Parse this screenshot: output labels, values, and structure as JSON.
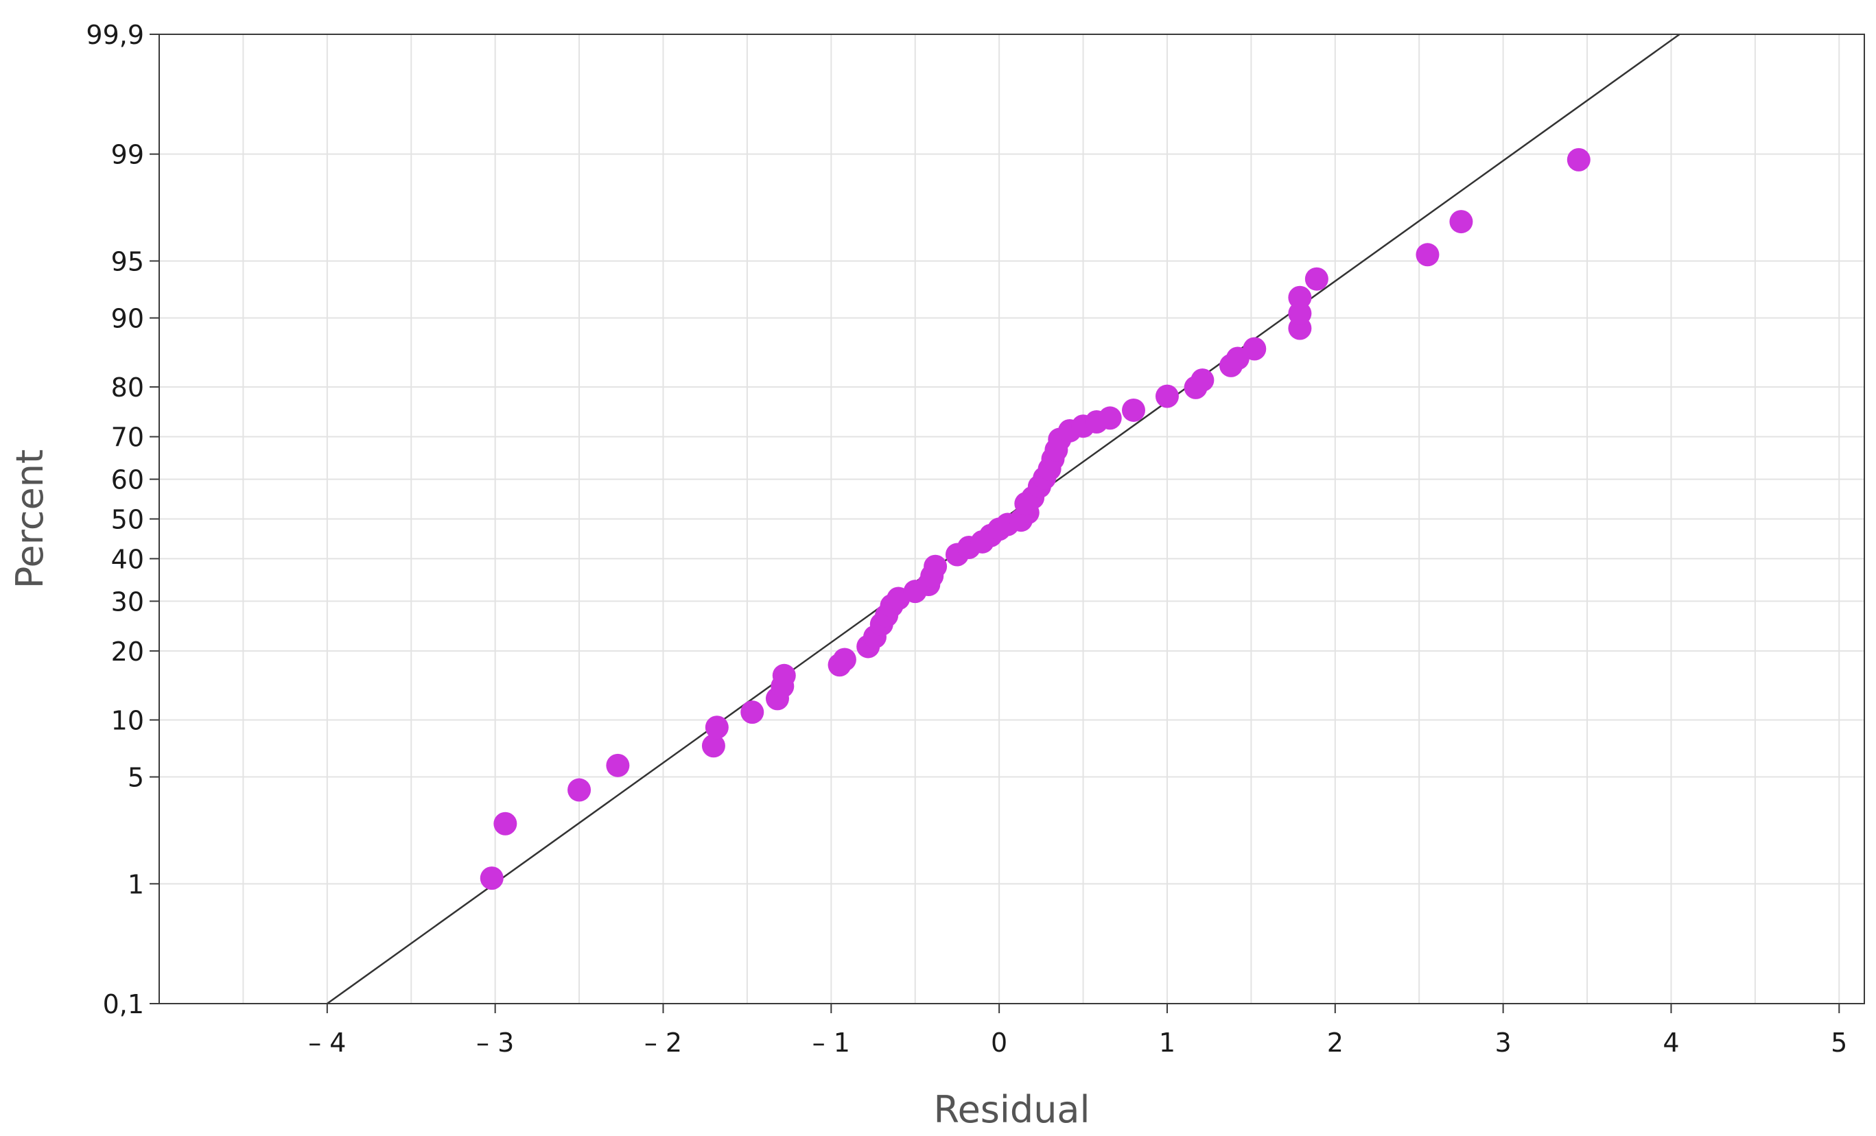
{
  "chart_data": {
    "type": "scatter",
    "title": "",
    "xlabel": "Residual",
    "ylabel": "Percent",
    "xlim": [
      -5.0,
      5.15
    ],
    "x_ticks": [
      -4,
      -3,
      -2,
      -1,
      0,
      1,
      2,
      3,
      4,
      5
    ],
    "x_tick_labels": [
      "– 4",
      "– 3",
      "– 2",
      "– 1",
      "0",
      "1",
      "2",
      "3",
      "4",
      "5"
    ],
    "y_scale": "normal-probability",
    "ylim": [
      0.1,
      99.9
    ],
    "y_ticks": [
      0.1,
      1,
      5,
      10,
      20,
      30,
      40,
      50,
      60,
      70,
      80,
      90,
      95,
      99,
      99.9
    ],
    "y_tick_labels": [
      "0,1",
      "1",
      "5",
      "10",
      "20",
      "30",
      "40",
      "50",
      "60",
      "70",
      "80",
      "90",
      "95",
      "99",
      "99,9"
    ],
    "x_grid": [
      -4.5,
      -4,
      -3.5,
      -3,
      -2.5,
      -2,
      -1.5,
      -1,
      -0.5,
      0,
      0.5,
      1,
      1.5,
      2,
      2.5,
      3,
      3.5,
      4,
      4.5,
      5
    ],
    "grid": true,
    "legend": "none",
    "marker_color": "#cc33dd",
    "line_color": "#333333",
    "grid_color": "#e3e3e3",
    "reference_line": {
      "x": [
        -4.0,
        4.05
      ],
      "y": [
        0.1,
        99.9
      ]
    },
    "points": [
      {
        "x": -3.02,
        "y": 1.1
      },
      {
        "x": -2.94,
        "y": 2.6
      },
      {
        "x": -2.5,
        "y": 4.2
      },
      {
        "x": -2.27,
        "y": 5.8
      },
      {
        "x": -1.7,
        "y": 7.4
      },
      {
        "x": -1.68,
        "y": 9.2
      },
      {
        "x": -1.47,
        "y": 10.9
      },
      {
        "x": -1.32,
        "y": 12.6
      },
      {
        "x": -1.29,
        "y": 14.3
      },
      {
        "x": -1.28,
        "y": 15.9
      },
      {
        "x": -0.95,
        "y": 17.6
      },
      {
        "x": -0.92,
        "y": 18.5
      },
      {
        "x": -0.78,
        "y": 20.8
      },
      {
        "x": -0.74,
        "y": 22.6
      },
      {
        "x": -0.7,
        "y": 25.1
      },
      {
        "x": -0.67,
        "y": 26.9
      },
      {
        "x": -0.64,
        "y": 29.0
      },
      {
        "x": -0.6,
        "y": 30.6
      },
      {
        "x": -0.5,
        "y": 32.2
      },
      {
        "x": -0.42,
        "y": 33.8
      },
      {
        "x": -0.4,
        "y": 35.8
      },
      {
        "x": -0.38,
        "y": 38.1
      },
      {
        "x": -0.25,
        "y": 41.0
      },
      {
        "x": -0.18,
        "y": 42.8
      },
      {
        "x": -0.1,
        "y": 44.2
      },
      {
        "x": -0.05,
        "y": 45.8
      },
      {
        "x": 0.0,
        "y": 47.4
      },
      {
        "x": 0.05,
        "y": 48.6
      },
      {
        "x": 0.13,
        "y": 49.7
      },
      {
        "x": 0.17,
        "y": 51.6
      },
      {
        "x": 0.16,
        "y": 53.9
      },
      {
        "x": 0.2,
        "y": 55.4
      },
      {
        "x": 0.24,
        "y": 58.2
      },
      {
        "x": 0.27,
        "y": 60.3
      },
      {
        "x": 0.3,
        "y": 62.5
      },
      {
        "x": 0.32,
        "y": 64.9
      },
      {
        "x": 0.34,
        "y": 67.0
      },
      {
        "x": 0.36,
        "y": 69.4
      },
      {
        "x": 0.42,
        "y": 71.3
      },
      {
        "x": 0.5,
        "y": 72.3
      },
      {
        "x": 0.58,
        "y": 73.2
      },
      {
        "x": 0.66,
        "y": 74.0
      },
      {
        "x": 0.8,
        "y": 75.6
      },
      {
        "x": 1.0,
        "y": 78.3
      },
      {
        "x": 1.17,
        "y": 79.9
      },
      {
        "x": 1.21,
        "y": 81.2
      },
      {
        "x": 1.38,
        "y": 83.6
      },
      {
        "x": 1.42,
        "y": 84.7
      },
      {
        "x": 1.52,
        "y": 86.1
      },
      {
        "x": 1.79,
        "y": 88.8
      },
      {
        "x": 1.79,
        "y": 90.5
      },
      {
        "x": 1.79,
        "y": 92.1
      },
      {
        "x": 1.89,
        "y": 93.7
      },
      {
        "x": 2.55,
        "y": 95.4
      },
      {
        "x": 2.75,
        "y": 97.1
      },
      {
        "x": 3.45,
        "y": 98.9
      }
    ]
  }
}
